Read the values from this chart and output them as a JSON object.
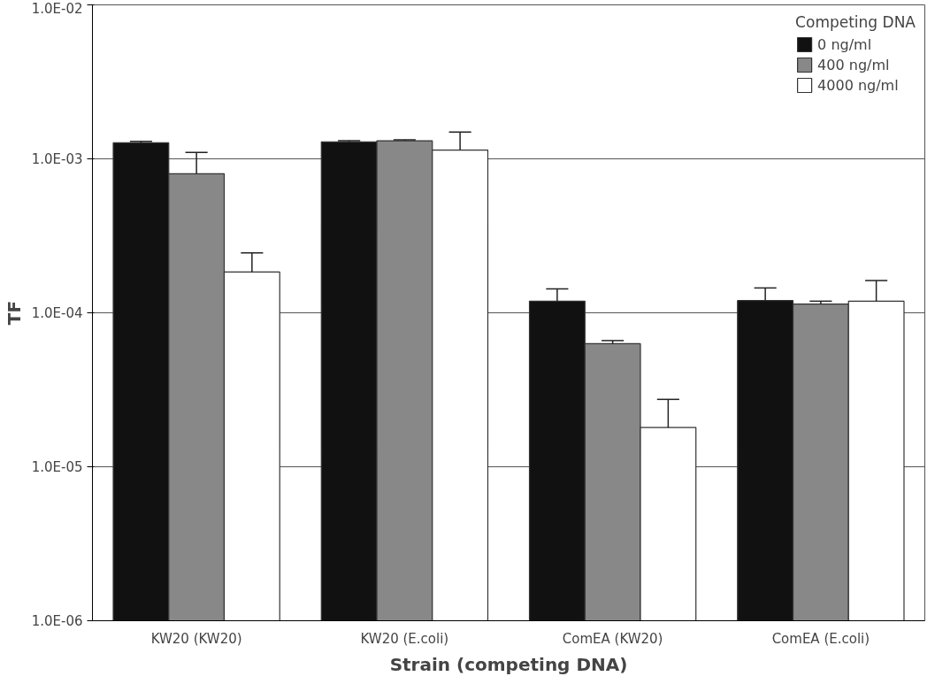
{
  "chart_data": {
    "type": "bar",
    "xlabel": "Strain (competing DNA)",
    "ylabel": "TF",
    "legend_title": "Competing DNA",
    "categories": [
      "KW20 (KW20)",
      "KW20 (E.coli)",
      "ComEA (KW20)",
      "ComEA (E.coli)"
    ],
    "series": [
      {
        "name": "0 ng/ml",
        "color": "#111111",
        "values": [
          0.00127,
          0.00129,
          0.000119,
          0.00012
        ],
        "errors": [
          [
            0.00127,
            0.0013
          ],
          [
            0.00129,
            0.00131
          ],
          [
            0.000119,
            0.000143
          ],
          [
            0.00012,
            0.000145
          ]
        ]
      },
      {
        "name": "400 ng/ml",
        "color": "#888888",
        "values": [
          0.0008,
          0.00131,
          6.3e-05,
          0.000114
        ],
        "errors": [
          [
            0.0008,
            0.0011
          ],
          [
            0.00131,
            0.00133
          ],
          [
            6.3e-05,
            6.6e-05
          ],
          [
            0.000114,
            0.000119
          ]
        ]
      },
      {
        "name": "4000 ng/ml",
        "color": "#ffffff",
        "values": [
          0.000184,
          0.00114,
          1.8e-05,
          0.000119
        ],
        "errors": [
          [
            0.000184,
            0.000245
          ],
          [
            0.00114,
            0.00149
          ],
          [
            1.8e-05,
            2.74e-05
          ],
          [
            0.000119,
            0.000162
          ]
        ]
      }
    ],
    "log": true,
    "ylim": [
      1e-06,
      0.01
    ],
    "yticks": [
      {
        "value": 1e-06,
        "label": "1.0E-06"
      },
      {
        "value": 1e-05,
        "label": "1.0E-05"
      },
      {
        "value": 0.0001,
        "label": "1.0E-04"
      },
      {
        "value": 0.001,
        "label": "1.0E-03"
      },
      {
        "value": 0.01,
        "label": "1.0E-02"
      }
    ],
    "grid": "y",
    "legend": "top right"
  }
}
